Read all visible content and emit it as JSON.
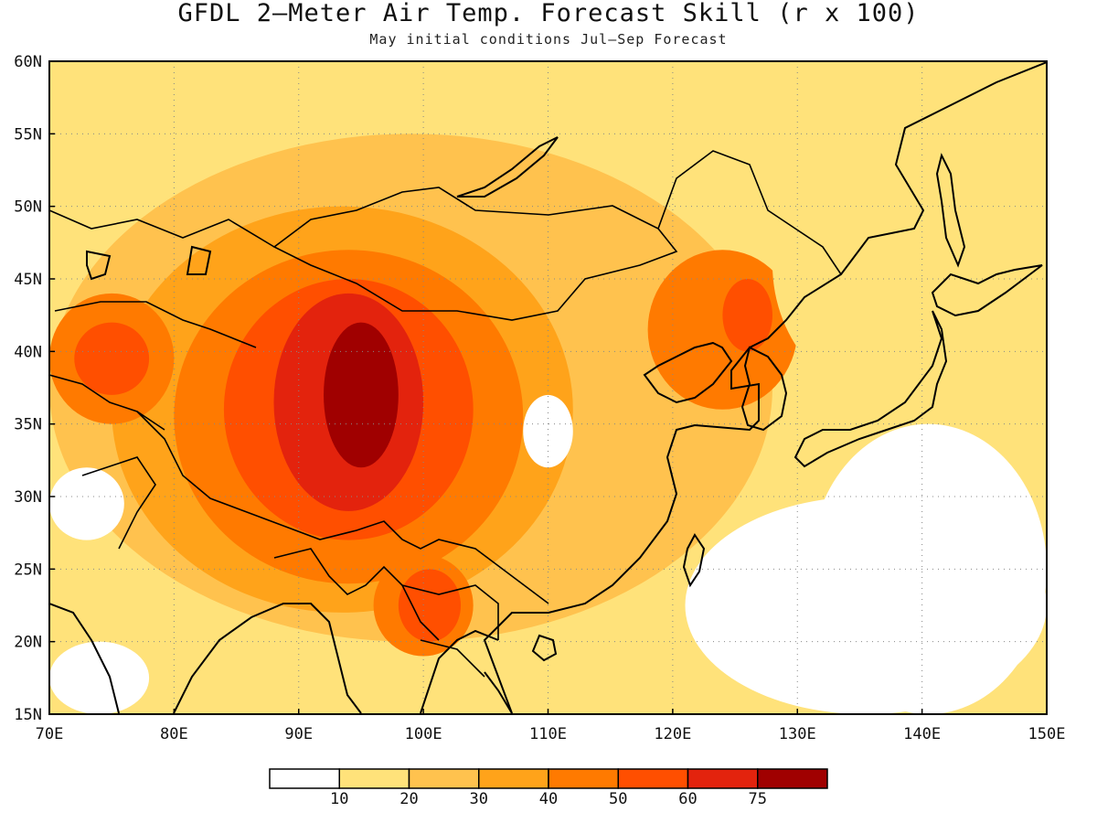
{
  "title": "GFDL 2—Meter Air Temp. Forecast Skill (r x 100)",
  "subtitle": "May initial conditions  Jul—Sep Forecast",
  "map": {
    "lon_range": [
      70,
      150
    ],
    "lat_range": [
      15,
      60
    ],
    "lon_ticks": [
      "70E",
      "80E",
      "90E",
      "100E",
      "110E",
      "120E",
      "130E",
      "140E",
      "150E"
    ],
    "lat_ticks": [
      "15N",
      "20N",
      "25N",
      "30N",
      "35N",
      "40N",
      "45N",
      "50N",
      "55N",
      "60N"
    ],
    "gridlines": "dotted"
  },
  "colorbar": {
    "labels": [
      "10",
      "20",
      "30",
      "40",
      "50",
      "60",
      "75"
    ],
    "colors": [
      "#ffffff",
      "#ffe27a",
      "#ffc24e",
      "#ffa31a",
      "#ff7a00",
      "#ff4f00",
      "#e3230d",
      "#a00000"
    ]
  },
  "skill_regions": [
    {
      "level": 1,
      "lon": [
        70,
        150
      ],
      "lat": [
        15,
        60
      ]
    },
    {
      "level": 2,
      "lon": [
        70,
        128
      ],
      "lat": [
        20,
        55
      ]
    },
    {
      "level": 3,
      "lon": [
        75,
        112
      ],
      "lat": [
        22,
        50
      ]
    },
    {
      "level": 4,
      "lon": [
        80,
        108
      ],
      "lat": [
        24,
        47
      ]
    },
    {
      "level": 5,
      "lon": [
        84,
        104
      ],
      "lat": [
        27,
        45
      ]
    },
    {
      "level": 6,
      "lon": [
        88,
        100
      ],
      "lat": [
        29,
        44
      ]
    },
    {
      "level": 7,
      "lon": [
        92,
        98
      ],
      "lat": [
        32,
        42
      ]
    },
    {
      "level": 4,
      "lon": [
        118,
        130
      ],
      "lat": [
        36,
        47
      ]
    },
    {
      "level": 5,
      "lon": [
        124,
        128
      ],
      "lat": [
        40,
        45
      ]
    },
    {
      "level": 4,
      "lon": [
        70,
        80
      ],
      "lat": [
        35,
        44
      ]
    },
    {
      "level": 5,
      "lon": [
        72,
        78
      ],
      "lat": [
        37,
        42
      ]
    },
    {
      "level": 4,
      "lon": [
        96,
        104
      ],
      "lat": [
        19,
        26
      ]
    },
    {
      "level": 5,
      "lon": [
        98,
        103
      ],
      "lat": [
        20,
        25
      ]
    },
    {
      "level": 0,
      "lon": [
        108,
        112
      ],
      "lat": [
        32,
        37
      ]
    },
    {
      "level": 0,
      "lon": [
        70,
        76
      ],
      "lat": [
        27,
        32
      ]
    },
    {
      "level": 0,
      "lon": [
        70,
        78
      ],
      "lat": [
        15,
        20
      ]
    },
    {
      "level": 0,
      "lon": [
        131,
        150
      ],
      "lat": [
        15,
        35
      ]
    },
    {
      "level": 0,
      "lon": [
        121,
        150
      ],
      "lat": [
        15,
        30
      ]
    },
    {
      "level": 1,
      "lon": [
        128,
        150
      ],
      "lat": [
        36,
        56
      ]
    }
  ]
}
